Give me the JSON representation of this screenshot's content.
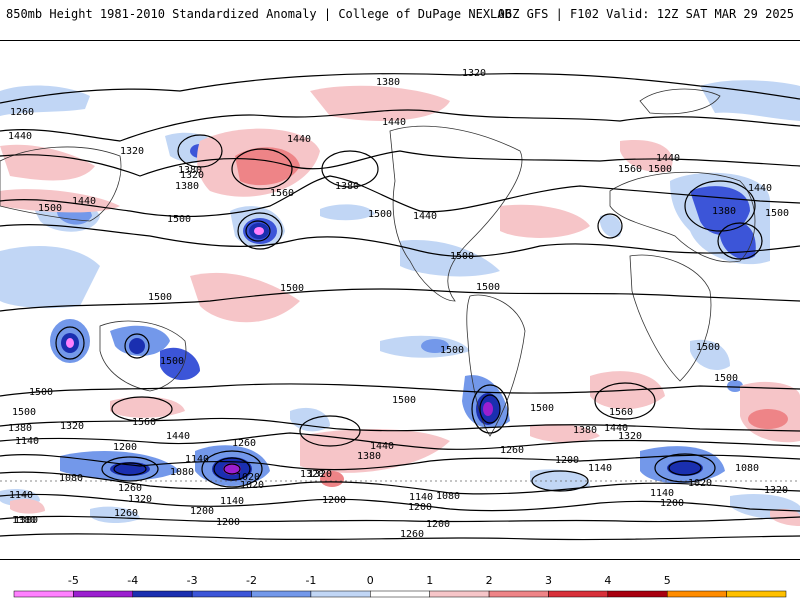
{
  "header": {
    "title": "850mb Height 1981-2010 Standardized Anomaly | College of DuPage NEXLAB",
    "run_info": "06Z GFS | F102 Valid: 12Z SAT MAR 29 2025"
  },
  "contour_labels": [
    "1380",
    "1320",
    "1260",
    "1440",
    "1440",
    "1440",
    "1320",
    "1380",
    "1320",
    "1380",
    "1500",
    "1440",
    "1500",
    "1560",
    "1380",
    "1500",
    "1440",
    "1560",
    "1500",
    "1440",
    "1440",
    "1500",
    "1500",
    "1380",
    "1500",
    "1500",
    "1500",
    "1500",
    "1500",
    "1500",
    "1500",
    "1500",
    "1500",
    "1500",
    "1500",
    "1560",
    "1440",
    "1320",
    "1380",
    "1560",
    "1440",
    "1380",
    "1320",
    "1320",
    "1260",
    "1200",
    "1080",
    "1140",
    "1080",
    "1020",
    "1260",
    "1260",
    "1200",
    "1320",
    "1380",
    "1140",
    "1020",
    "1140",
    "1080",
    "1200",
    "1440",
    "1380",
    "1320",
    "1260",
    "1200",
    "1140",
    "1200",
    "1200",
    "1260",
    "1200",
    "1140",
    "1020",
    "1140",
    "1080",
    "1200",
    "1320",
    "1140",
    "1380"
  ],
  "colorbar": {
    "tick_labels": [
      "-5",
      "-4",
      "-3",
      "-2",
      "-1",
      "0",
      "1",
      "2",
      "3",
      "4",
      "5"
    ],
    "colors": [
      "#ff80ff",
      "#9b1fcf",
      "#1a2fb0",
      "#3c55d8",
      "#7398ea",
      "#c1d6f5",
      "#ffffff",
      "#f6c5c8",
      "#ee8487",
      "#d8303a",
      "#a8000f",
      "#ff8c00",
      "#ffc000"
    ]
  }
}
